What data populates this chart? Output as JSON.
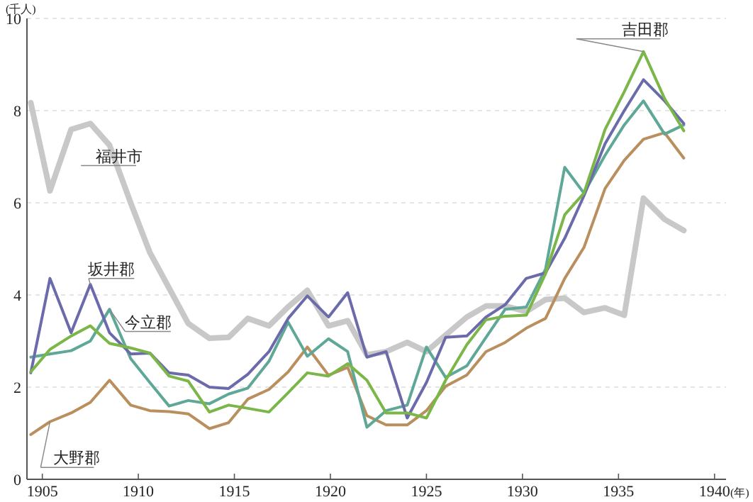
{
  "chart_data": {
    "type": "line",
    "xlabel": "(年)",
    "ylabel": "(千人)",
    "x": [
      1904.4,
      1905.4,
      1906.5,
      1907.5,
      1908.5,
      1909.6,
      1910.6,
      1911.6,
      1912.6,
      1913.7,
      1914.7,
      1915.7,
      1916.8,
      1917.8,
      1918.8,
      1919.9,
      1920.9,
      1921.9,
      1922.9,
      1924.0,
      1925.0,
      1926.0,
      1927.1,
      1928.1,
      1929.1,
      1930.2,
      1931.2,
      1932.2,
      1933.2,
      1934.3,
      1935.3,
      1936.3,
      1937.4,
      1938.4
    ],
    "xlim": [
      1904.2,
      1940.6
    ],
    "xticks": [
      1905,
      1910,
      1915,
      1920,
      1925,
      1930,
      1935,
      1940
    ],
    "ylim": [
      0,
      10
    ],
    "yticks": [
      0,
      2,
      4,
      6,
      8,
      10
    ],
    "grid": "y",
    "legend": false,
    "line_style": "solid",
    "marker": "none",
    "series": [
      {
        "name": "福井市",
        "color": "#c8c8c8",
        "values": [
          8.17,
          6.26,
          7.59,
          7.72,
          7.25,
          6.0,
          4.92,
          4.15,
          3.38,
          3.06,
          3.08,
          3.49,
          3.33,
          3.74,
          4.1,
          3.33,
          3.44,
          2.7,
          2.77,
          2.97,
          2.77,
          3.13,
          3.52,
          3.76,
          3.76,
          3.64,
          3.9,
          3.93,
          3.62,
          3.72,
          3.56,
          6.1,
          5.64,
          5.4
        ]
      },
      {
        "name": "坂井郡",
        "color": "#6b6bab",
        "values": [
          2.31,
          4.36,
          3.18,
          4.23,
          3.18,
          2.72,
          2.74,
          2.31,
          2.26,
          2.0,
          1.97,
          2.28,
          2.77,
          3.49,
          3.98,
          3.52,
          4.05,
          2.65,
          2.77,
          1.33,
          2.1,
          3.08,
          3.11,
          3.52,
          3.79,
          4.36,
          4.48,
          5.23,
          6.15,
          7.28,
          8.0,
          8.67,
          8.21,
          7.72
        ]
      },
      {
        "name": "今立郡",
        "color": "#5fa897",
        "values": [
          2.65,
          2.72,
          2.79,
          3.0,
          3.69,
          2.62,
          2.1,
          1.59,
          1.71,
          1.64,
          1.85,
          1.98,
          2.56,
          3.41,
          2.67,
          3.05,
          2.77,
          1.13,
          1.49,
          1.61,
          2.87,
          2.21,
          2.46,
          3.08,
          3.69,
          3.74,
          4.56,
          6.77,
          6.21,
          7.03,
          7.69,
          8.21,
          7.49,
          7.69
        ]
      },
      {
        "name": "吉田郡",
        "color": "#7ab648",
        "values": [
          2.33,
          2.82,
          3.11,
          3.33,
          2.95,
          2.85,
          2.74,
          2.24,
          2.13,
          1.46,
          1.61,
          1.54,
          1.46,
          1.88,
          2.31,
          2.24,
          2.51,
          2.15,
          1.44,
          1.44,
          1.33,
          2.15,
          2.92,
          3.46,
          3.54,
          3.56,
          4.46,
          5.74,
          6.21,
          7.59,
          8.41,
          9.28,
          8.26,
          7.56
        ]
      },
      {
        "name": "大野郡",
        "color": "#b98f5e",
        "values": [
          0.97,
          1.25,
          1.44,
          1.67,
          2.15,
          1.61,
          1.49,
          1.47,
          1.42,
          1.1,
          1.23,
          1.74,
          1.95,
          2.33,
          2.87,
          2.26,
          2.43,
          1.38,
          1.18,
          1.18,
          1.49,
          2.02,
          2.26,
          2.77,
          2.97,
          3.28,
          3.49,
          4.36,
          5.03,
          6.31,
          6.92,
          7.38,
          7.52,
          6.97
        ]
      }
    ]
  }
}
